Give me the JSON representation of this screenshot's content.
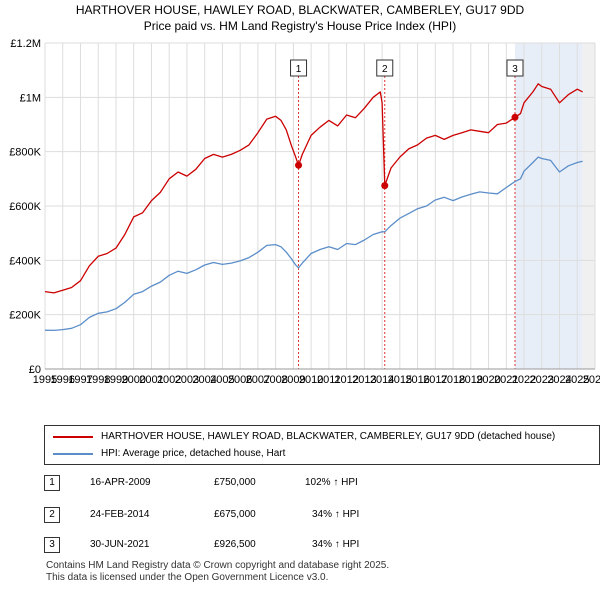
{
  "title": {
    "line1": "HARTHOVER HOUSE, HAWLEY ROAD, BLACKWATER, CAMBERLEY, GU17 9DD",
    "line2": "Price paid vs. HM Land Registry's House Price Index (HPI)"
  },
  "colors": {
    "property_line": "#cc0000",
    "hpi_line": "#5b8ec9",
    "grid": "#dddddd",
    "shade": "#e8eef8",
    "marker_line": "#dd3333"
  },
  "chart_data": {
    "type": "line",
    "title": "Price paid vs. HM Land Registry's House Price Index (HPI)",
    "xlim": [
      1995,
      2026
    ],
    "ylim": [
      0,
      1200000
    ],
    "x_ticks": [
      "1995",
      "1996",
      "1997",
      "1998",
      "1999",
      "2000",
      "2001",
      "2002",
      "2003",
      "2004",
      "2005",
      "2006",
      "2007",
      "2008",
      "2009",
      "2010",
      "2011",
      "2012",
      "2013",
      "2014",
      "2015",
      "2016",
      "2017",
      "2018",
      "2019",
      "2020",
      "2021",
      "2022",
      "2023",
      "2024",
      "2025",
      "2026"
    ],
    "y_ticks": [
      {
        "value": 0,
        "label": "£0"
      },
      {
        "value": 200000,
        "label": "£200K"
      },
      {
        "value": 400000,
        "label": "£400K"
      },
      {
        "value": 600000,
        "label": "£600K"
      },
      {
        "value": 800000,
        "label": "£800K"
      },
      {
        "value": 1000000,
        "label": "£1M"
      },
      {
        "value": 1200000,
        "label": "£1.2M"
      }
    ],
    "series": [
      {
        "name": "HARTHOVER HOUSE, HAWLEY ROAD, BLACKWATER, CAMBERLEY, GU17 9DD (detached house)",
        "x": [
          1995,
          1995.5,
          1996,
          1996.5,
          1997,
          1997.5,
          1998,
          1998.5,
          1999,
          1999.5,
          2000,
          2000.5,
          2001,
          2001.5,
          2002,
          2002.5,
          2003,
          2003.5,
          2004,
          2004.5,
          2005,
          2005.5,
          2006,
          2006.5,
          2007,
          2007.5,
          2008,
          2008.3,
          2008.6,
          2008.9,
          2009.1,
          2009.29,
          2009.5,
          2010,
          2010.5,
          2011,
          2011.5,
          2012,
          2012.5,
          2013,
          2013.5,
          2013.9,
          2014,
          2014.15,
          2014.5,
          2015,
          2015.5,
          2016,
          2016.5,
          2017,
          2017.5,
          2018,
          2018.5,
          2019,
          2019.5,
          2020,
          2020.5,
          2021,
          2021.49,
          2021.8,
          2022,
          2022.5,
          2022.8,
          2023,
          2023.5,
          2024,
          2024.5,
          2025,
          2025.3
        ],
        "values": [
          285000,
          280000,
          290000,
          300000,
          325000,
          380000,
          415000,
          425000,
          445000,
          495000,
          560000,
          575000,
          620000,
          650000,
          700000,
          725000,
          710000,
          735000,
          775000,
          790000,
          780000,
          790000,
          805000,
          825000,
          870000,
          920000,
          930000,
          915000,
          880000,
          820000,
          785000,
          750000,
          790000,
          860000,
          890000,
          915000,
          895000,
          935000,
          925000,
          960000,
          1000000,
          1020000,
          980000,
          675000,
          740000,
          780000,
          810000,
          825000,
          850000,
          860000,
          845000,
          860000,
          870000,
          880000,
          875000,
          870000,
          900000,
          905000,
          926500,
          940000,
          980000,
          1020000,
          1050000,
          1040000,
          1030000,
          980000,
          1010000,
          1030000,
          1020000
        ]
      },
      {
        "name": "HPI: Average price, detached house, Hart",
        "x": [
          1995,
          1995.5,
          1996,
          1996.5,
          1997,
          1997.5,
          1998,
          1998.5,
          1999,
          1999.5,
          2000,
          2000.5,
          2001,
          2001.5,
          2002,
          2002.5,
          2003,
          2003.5,
          2004,
          2004.5,
          2005,
          2005.5,
          2006,
          2006.5,
          2007,
          2007.5,
          2008,
          2008.3,
          2008.6,
          2008.9,
          2009.1,
          2009.29,
          2009.5,
          2010,
          2010.5,
          2011,
          2011.5,
          2012,
          2012.5,
          2013,
          2013.5,
          2014,
          2014.15,
          2014.5,
          2015,
          2015.5,
          2016,
          2016.5,
          2017,
          2017.5,
          2018,
          2018.5,
          2019,
          2019.5,
          2020,
          2020.5,
          2021,
          2021.49,
          2021.8,
          2022,
          2022.5,
          2022.8,
          2023,
          2023.5,
          2024,
          2024.5,
          2025,
          2025.3
        ],
        "values": [
          143000,
          142000,
          145000,
          150000,
          163000,
          190000,
          205000,
          210000,
          222000,
          245000,
          275000,
          285000,
          305000,
          320000,
          345000,
          360000,
          352000,
          365000,
          383000,
          392000,
          385000,
          390000,
          398000,
          410000,
          430000,
          455000,
          458000,
          450000,
          430000,
          405000,
          385000,
          372000,
          390000,
          425000,
          440000,
          450000,
          440000,
          462000,
          458000,
          475000,
          495000,
          505000,
          505000,
          528000,
          555000,
          572000,
          590000,
          600000,
          622000,
          632000,
          620000,
          633000,
          643000,
          652000,
          648000,
          645000,
          668000,
          690000,
          700000,
          728000,
          760000,
          780000,
          775000,
          768000,
          725000,
          748000,
          760000,
          765000
        ]
      }
    ],
    "sales": [
      {
        "label": "1",
        "x": 2009.29,
        "value": 750000,
        "date": "16-APR-2009",
        "price": "£750,000",
        "hpi": "102% ↑ HPI"
      },
      {
        "label": "2",
        "x": 2014.15,
        "value": 675000,
        "date": "24-FEB-2014",
        "price": "£675,000",
        "hpi": "34% ↑ HPI"
      },
      {
        "label": "3",
        "x": 2021.49,
        "value": 926500,
        "date": "30-JUN-2021",
        "price": "£926,500",
        "hpi": "34% ↑ HPI"
      }
    ],
    "legend_position": "below"
  },
  "legend": {
    "property_label": "HARTHOVER HOUSE, HAWLEY ROAD, BLACKWATER, CAMBERLEY, GU17 9DD (detached house)",
    "hpi_label": "HPI: Average price, detached house, Hart"
  },
  "footer": {
    "line1": "Contains HM Land Registry data © Crown copyright and database right 2025.",
    "line2": "This data is licensed under the Open Government Licence v3.0."
  }
}
